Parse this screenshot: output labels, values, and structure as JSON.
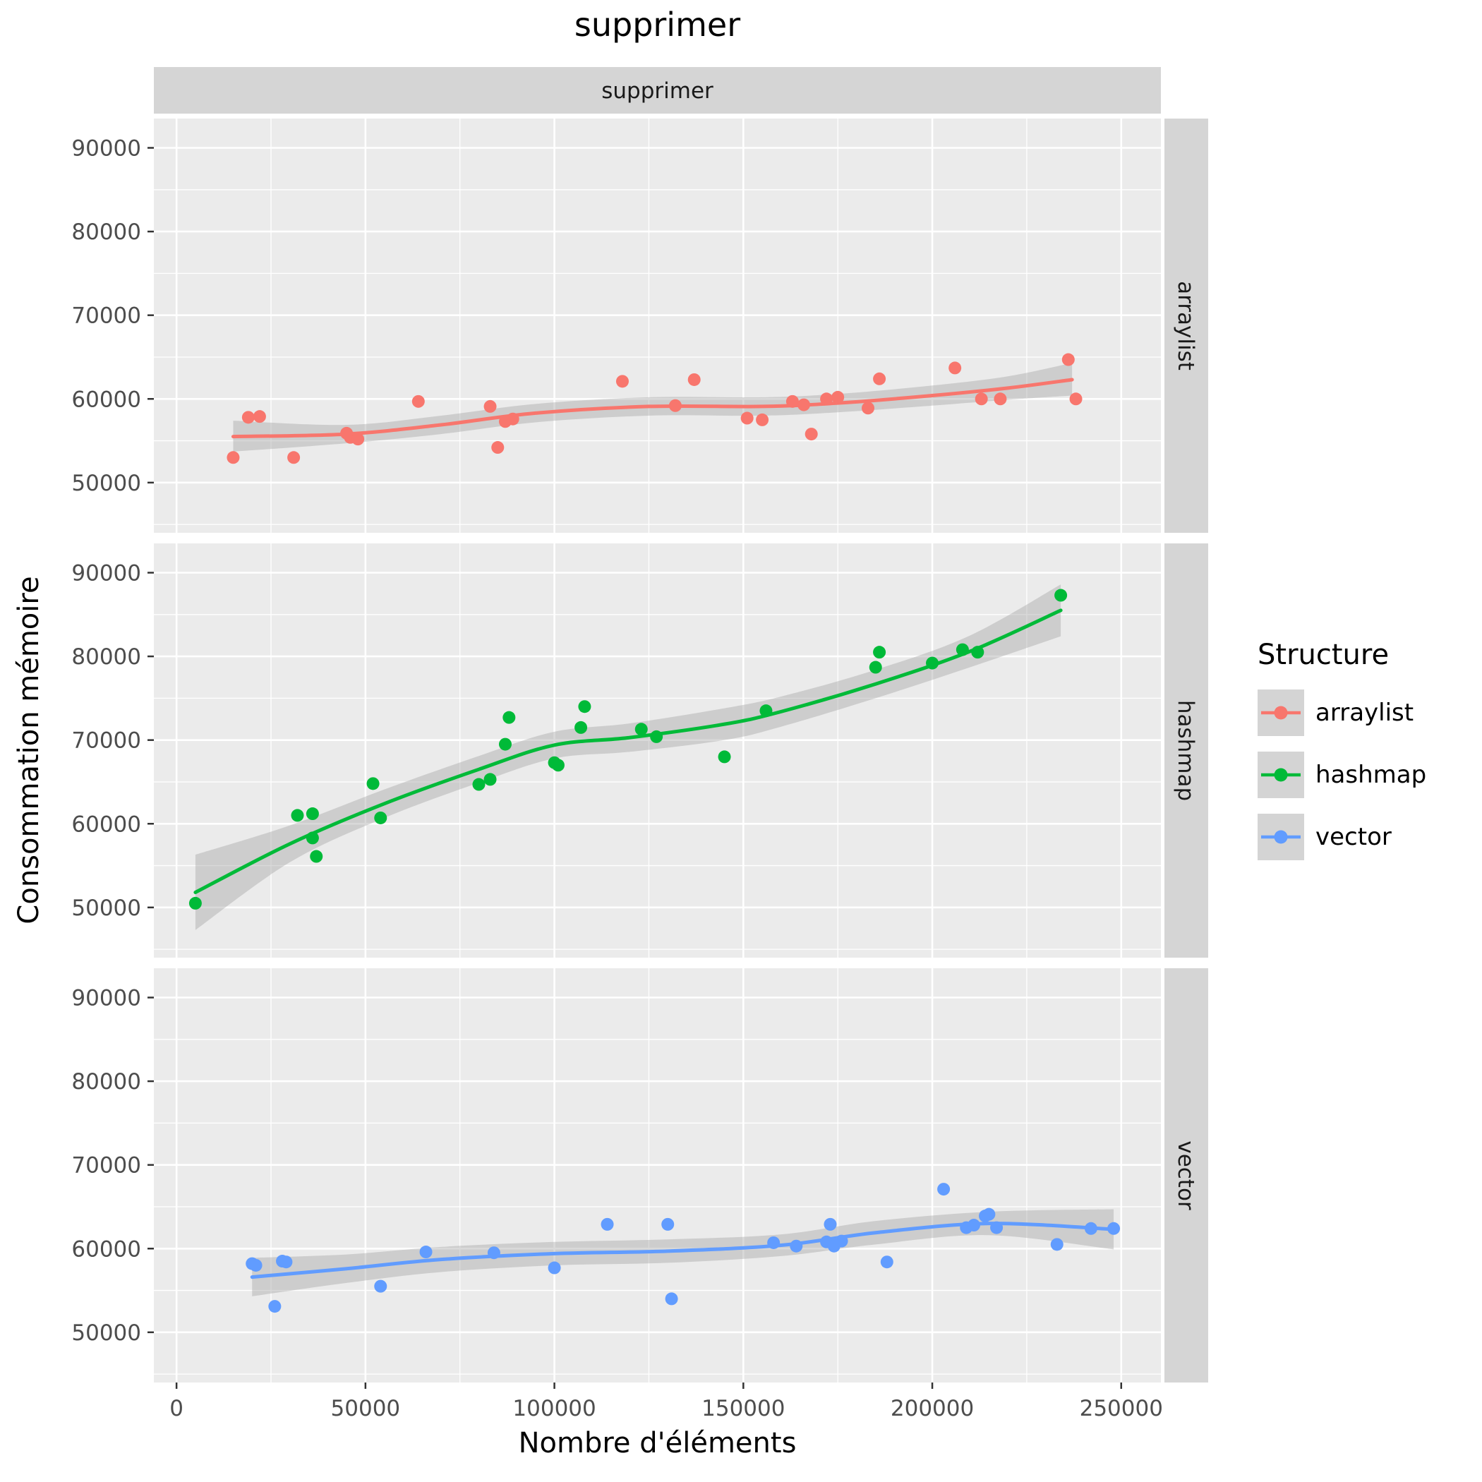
{
  "chart_data": {
    "type": "scatter",
    "title": "supprimer",
    "facet_strip_top": "supprimer",
    "xlabel": "Nombre d'éléments",
    "ylabel": "Consommation mémoire",
    "legend_title": "Structure",
    "legend_position": "right",
    "grid": true,
    "x_ticks": [
      0,
      50000,
      100000,
      150000,
      200000,
      250000
    ],
    "y_ticks": [
      50000,
      60000,
      70000,
      80000,
      90000
    ],
    "xlim": [
      -6000,
      260500
    ],
    "ylim": [
      44000,
      93500
    ],
    "colors": {
      "panel_bg": "#EBEBEB",
      "grid": "#FFFFFF",
      "strip_bg": "#D5D5D5",
      "tick_text": "#4D4D4D",
      "ribbon": "#A0A0A0"
    },
    "facets": [
      {
        "label": "arraylist",
        "color": "#F8766D",
        "points": [
          [
            15000,
            53000
          ],
          [
            19000,
            57800
          ],
          [
            22000,
            57900
          ],
          [
            31000,
            53000
          ],
          [
            45000,
            55900
          ],
          [
            46000,
            55400
          ],
          [
            48000,
            55200
          ],
          [
            64000,
            59700
          ],
          [
            83000,
            59100
          ],
          [
            85000,
            54200
          ],
          [
            87000,
            57300
          ],
          [
            89000,
            57600
          ],
          [
            118000,
            62100
          ],
          [
            132000,
            59200
          ],
          [
            137000,
            62300
          ],
          [
            151000,
            57700
          ],
          [
            155000,
            57500
          ],
          [
            163000,
            59700
          ],
          [
            166000,
            59300
          ],
          [
            168000,
            55800
          ],
          [
            172000,
            60000
          ],
          [
            175000,
            60200
          ],
          [
            183000,
            58900
          ],
          [
            186000,
            62400
          ],
          [
            206000,
            63700
          ],
          [
            213000,
            60000
          ],
          [
            218000,
            60000
          ],
          [
            236000,
            64700
          ],
          [
            238000,
            60000
          ]
        ],
        "smooth": [
          {
            "x": 15000,
            "y": 55500,
            "lo": 53700,
            "hi": 57400
          },
          {
            "x": 45000,
            "y": 55800,
            "lo": 54700,
            "hi": 56900
          },
          {
            "x": 70000,
            "y": 56900,
            "lo": 55800,
            "hi": 58000
          },
          {
            "x": 95000,
            "y": 58300,
            "lo": 57200,
            "hi": 59400
          },
          {
            "x": 125000,
            "y": 59100,
            "lo": 58000,
            "hi": 60200
          },
          {
            "x": 155000,
            "y": 59100,
            "lo": 58000,
            "hi": 60200
          },
          {
            "x": 175000,
            "y": 59500,
            "lo": 58400,
            "hi": 60600
          },
          {
            "x": 200000,
            "y": 60400,
            "lo": 59200,
            "hi": 61600
          },
          {
            "x": 220000,
            "y": 61300,
            "lo": 59900,
            "hi": 62700
          },
          {
            "x": 237000,
            "y": 62300,
            "lo": 60400,
            "hi": 64300
          }
        ]
      },
      {
        "label": "hashmap",
        "color": "#00BA38",
        "points": [
          [
            5000,
            50500
          ],
          [
            32000,
            61000
          ],
          [
            36000,
            61200
          ],
          [
            36000,
            58300
          ],
          [
            37000,
            56100
          ],
          [
            52000,
            64800
          ],
          [
            54000,
            60700
          ],
          [
            80000,
            64700
          ],
          [
            83000,
            65300
          ],
          [
            87000,
            69500
          ],
          [
            88000,
            72700
          ],
          [
            100000,
            67300
          ],
          [
            101000,
            67000
          ],
          [
            107000,
            71500
          ],
          [
            108000,
            74000
          ],
          [
            123000,
            71300
          ],
          [
            127000,
            70400
          ],
          [
            145000,
            68000
          ],
          [
            156000,
            73500
          ],
          [
            185000,
            78700
          ],
          [
            186000,
            80500
          ],
          [
            200000,
            79200
          ],
          [
            208000,
            80800
          ],
          [
            212000,
            80500
          ],
          [
            234000,
            87300
          ]
        ],
        "smooth": [
          {
            "x": 5000,
            "y": 51800,
            "lo": 47300,
            "hi": 56300
          },
          {
            "x": 30000,
            "y": 57600,
            "lo": 55400,
            "hi": 59800
          },
          {
            "x": 55000,
            "y": 62400,
            "lo": 60700,
            "hi": 64100
          },
          {
            "x": 80000,
            "y": 66500,
            "lo": 64900,
            "hi": 68100
          },
          {
            "x": 100000,
            "y": 69400,
            "lo": 67800,
            "hi": 71000
          },
          {
            "x": 120000,
            "y": 70300,
            "lo": 68600,
            "hi": 72000
          },
          {
            "x": 145000,
            "y": 71900,
            "lo": 70000,
            "hi": 73800
          },
          {
            "x": 160000,
            "y": 73400,
            "lo": 71600,
            "hi": 75200
          },
          {
            "x": 185000,
            "y": 76700,
            "lo": 75000,
            "hi": 78400
          },
          {
            "x": 210000,
            "y": 80600,
            "lo": 78700,
            "hi": 82500
          },
          {
            "x": 234000,
            "y": 85500,
            "lo": 82400,
            "hi": 88600
          }
        ]
      },
      {
        "label": "vector",
        "color": "#619CFF",
        "points": [
          [
            20000,
            58200
          ],
          [
            21000,
            58000
          ],
          [
            26000,
            53100
          ],
          [
            28000,
            58500
          ],
          [
            29000,
            58400
          ],
          [
            54000,
            55500
          ],
          [
            66000,
            59600
          ],
          [
            84000,
            59500
          ],
          [
            100000,
            57700
          ],
          [
            114000,
            62900
          ],
          [
            130000,
            62900
          ],
          [
            131000,
            54000
          ],
          [
            158000,
            60700
          ],
          [
            164000,
            60300
          ],
          [
            172000,
            60800
          ],
          [
            173000,
            62900
          ],
          [
            174000,
            60300
          ],
          [
            176000,
            60900
          ],
          [
            188000,
            58400
          ],
          [
            203000,
            67100
          ],
          [
            209000,
            62500
          ],
          [
            211000,
            62800
          ],
          [
            214000,
            63900
          ],
          [
            215000,
            64100
          ],
          [
            217000,
            62500
          ],
          [
            233000,
            60500
          ],
          [
            242000,
            62400
          ],
          [
            248000,
            62400
          ]
        ],
        "smooth": [
          {
            "x": 20000,
            "y": 56600,
            "lo": 54300,
            "hi": 58900
          },
          {
            "x": 45000,
            "y": 57600,
            "lo": 55900,
            "hi": 59300
          },
          {
            "x": 70000,
            "y": 58700,
            "lo": 57200,
            "hi": 60200
          },
          {
            "x": 100000,
            "y": 59400,
            "lo": 58000,
            "hi": 60800
          },
          {
            "x": 130000,
            "y": 59700,
            "lo": 58300,
            "hi": 61100
          },
          {
            "x": 160000,
            "y": 60400,
            "lo": 59100,
            "hi": 61700
          },
          {
            "x": 185000,
            "y": 61900,
            "lo": 60500,
            "hi": 63300
          },
          {
            "x": 215000,
            "y": 63000,
            "lo": 61600,
            "hi": 64400
          },
          {
            "x": 248000,
            "y": 62300,
            "lo": 59900,
            "hi": 64700
          }
        ]
      }
    ]
  }
}
